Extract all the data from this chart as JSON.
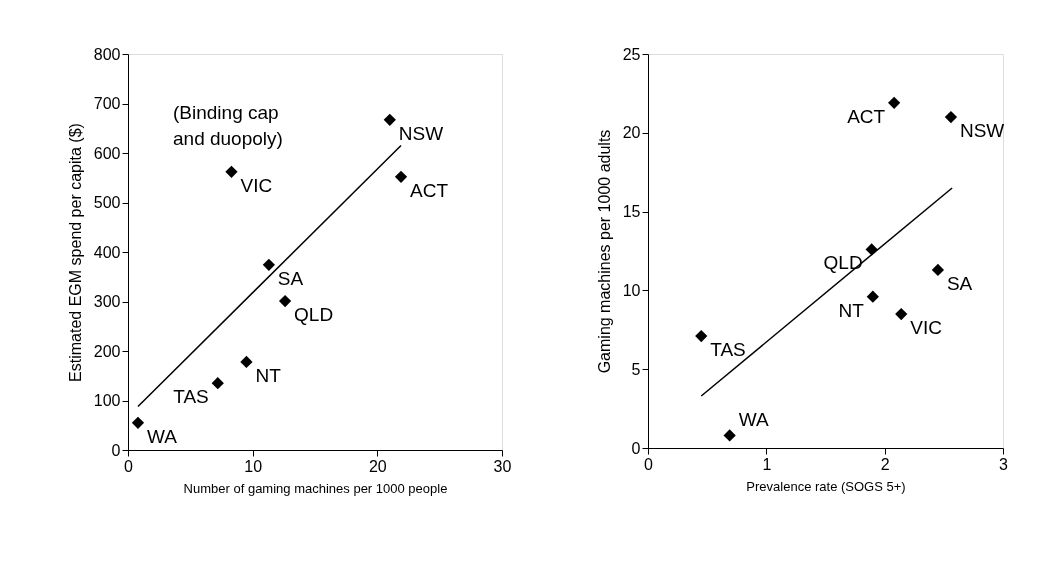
{
  "chart_data": [
    {
      "type": "scatter",
      "xlabel": "Number of gaming machines per 1000 people",
      "ylabel": "Estimated EGM spend per capita ($)",
      "xlim": [
        0,
        30
      ],
      "xticks": [
        0,
        10,
        20,
        30
      ],
      "ylim": [
        0,
        800
      ],
      "yticks": [
        0,
        100,
        200,
        300,
        400,
        500,
        600,
        700,
        800
      ],
      "grid": false,
      "marker": "diamond",
      "series": [
        {
          "color": "#000000",
          "x": [
            0.8,
            7.2,
            9.5,
            8.3,
            11.3,
            12.6,
            21.0,
            21.9
          ],
          "values": [
            55,
            135,
            178,
            562,
            374,
            301,
            667,
            552
          ]
        },
        {
          "type": "line",
          "marker": "none",
          "line_style": "solid",
          "color": "#000000",
          "x": [
            0.8,
            21.9
          ],
          "values": [
            88,
            615
          ]
        }
      ],
      "annotations": [
        {
          "text": "WA",
          "x": 0.8,
          "y": 55
        },
        {
          "text": "TAS",
          "x": 7.2,
          "y": 135
        },
        {
          "text": "NT",
          "x": 9.5,
          "y": 178
        },
        {
          "text": "VIC",
          "x": 8.3,
          "y": 562
        },
        {
          "text": "SA",
          "x": 11.3,
          "y": 374
        },
        {
          "text": "QLD",
          "x": 12.6,
          "y": 301
        },
        {
          "text": "NSW",
          "x": 21.0,
          "y": 667
        },
        {
          "text": "ACT",
          "x": 21.9,
          "y": 552
        },
        "(Binding cap\nand duopoly)"
      ]
    },
    {
      "type": "scatter",
      "xlabel": "Prevalence rate (SOGS 5+)",
      "ylabel": "Gaming machines per 1000 adults",
      "xlim": [
        0,
        3
      ],
      "xticks": [
        0,
        1,
        2,
        3
      ],
      "ylim": [
        0,
        25
      ],
      "yticks": [
        0,
        5,
        10,
        15,
        20,
        25
      ],
      "grid": false,
      "marker": "diamond",
      "series": [
        {
          "color": "#000000",
          "x": [
            0.45,
            0.69,
            1.9,
            1.89,
            2.14,
            2.45,
            2.08,
            2.56
          ],
          "values": [
            7.1,
            0.8,
            9.6,
            12.6,
            8.5,
            11.3,
            21.9,
            21.0
          ]
        },
        {
          "type": "line",
          "marker": "none",
          "line_style": "solid",
          "color": "#000000",
          "x": [
            0.45,
            2.57
          ],
          "values": [
            3.3,
            16.5
          ]
        }
      ],
      "annotations": [
        {
          "text": "TAS",
          "x": 0.45,
          "y": 7.1
        },
        {
          "text": "WA",
          "x": 0.69,
          "y": 0.8
        },
        {
          "text": "NT",
          "x": 1.9,
          "y": 9.6
        },
        {
          "text": "QLD",
          "x": 1.89,
          "y": 12.6
        },
        {
          "text": "VIC",
          "x": 2.14,
          "y": 8.5
        },
        {
          "text": "SA",
          "x": 2.45,
          "y": 11.3
        },
        {
          "text": "ACT",
          "x": 2.08,
          "y": 21.9
        },
        {
          "text": "NSW",
          "x": 2.56,
          "y": 21.0
        }
      ]
    }
  ]
}
